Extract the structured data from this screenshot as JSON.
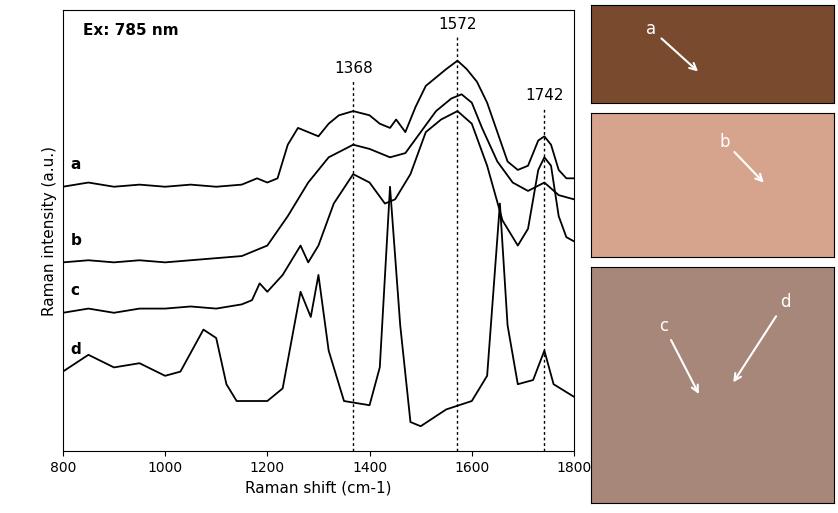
{
  "chart_data": {
    "type": "line",
    "annotations": [
      "Ex: 785 nm"
    ],
    "x_label": "Raman shift (cm-1)",
    "y_label": "Raman intensity (a.u.)",
    "xlim": [
      800,
      1800
    ],
    "xticks": [
      800,
      1000,
      1200,
      1400,
      1600,
      1800
    ],
    "ylim": [
      0,
      10.5
    ],
    "tick_labels": "x",
    "grid": false,
    "reference_lines": [
      {
        "x": 1368,
        "label": "1368"
      },
      {
        "x": 1572,
        "label": "1572"
      },
      {
        "x": 1742,
        "label": "1742"
      }
    ],
    "series": [
      {
        "name": "a",
        "color": "#000000",
        "x": [
          800,
          850,
          900,
          950,
          1000,
          1050,
          1100,
          1150,
          1180,
          1200,
          1220,
          1240,
          1260,
          1280,
          1300,
          1320,
          1340,
          1368,
          1400,
          1420,
          1440,
          1452,
          1470,
          1490,
          1510,
          1530,
          1550,
          1572,
          1590,
          1610,
          1630,
          1650,
          1670,
          1690,
          1710,
          1730,
          1742,
          1755,
          1770,
          1785,
          1800
        ],
        "values": [
          6.3,
          6.4,
          6.3,
          6.35,
          6.3,
          6.35,
          6.3,
          6.35,
          6.5,
          6.4,
          6.5,
          7.3,
          7.7,
          7.6,
          7.5,
          7.8,
          8.0,
          8.1,
          8.0,
          7.8,
          7.7,
          7.9,
          7.6,
          8.2,
          8.7,
          8.9,
          9.1,
          9.3,
          9.1,
          8.8,
          8.3,
          7.6,
          6.9,
          6.7,
          6.8,
          7.4,
          7.5,
          7.3,
          6.7,
          6.5,
          6.5
        ]
      },
      {
        "name": "b",
        "color": "#000000",
        "x": [
          800,
          850,
          900,
          950,
          1000,
          1050,
          1100,
          1150,
          1200,
          1240,
          1280,
          1320,
          1368,
          1400,
          1440,
          1470,
          1500,
          1530,
          1560,
          1580,
          1600,
          1620,
          1650,
          1680,
          1710,
          1742,
          1770,
          1800
        ],
        "values": [
          4.5,
          4.55,
          4.5,
          4.55,
          4.5,
          4.55,
          4.6,
          4.65,
          4.9,
          5.6,
          6.4,
          7.0,
          7.3,
          7.2,
          7.0,
          7.1,
          7.6,
          8.1,
          8.4,
          8.5,
          8.3,
          7.7,
          6.9,
          6.4,
          6.2,
          6.4,
          6.1,
          6.0
        ]
      },
      {
        "name": "c",
        "color": "#000000",
        "x": [
          800,
          850,
          900,
          950,
          1000,
          1050,
          1100,
          1150,
          1170,
          1185,
          1200,
          1230,
          1265,
          1280,
          1300,
          1330,
          1368,
          1400,
          1430,
          1450,
          1480,
          1510,
          1540,
          1572,
          1600,
          1630,
          1660,
          1690,
          1710,
          1730,
          1742,
          1755,
          1770,
          1785,
          1800
        ],
        "values": [
          3.3,
          3.4,
          3.3,
          3.4,
          3.4,
          3.45,
          3.4,
          3.5,
          3.6,
          4.0,
          3.8,
          4.2,
          4.9,
          4.5,
          4.9,
          5.9,
          6.6,
          6.4,
          5.9,
          6.0,
          6.6,
          7.6,
          7.9,
          8.1,
          7.8,
          6.8,
          5.5,
          4.9,
          5.3,
          6.7,
          7.0,
          6.8,
          5.6,
          5.1,
          5.0
        ]
      },
      {
        "name": "d",
        "color": "#000000",
        "x": [
          800,
          850,
          900,
          950,
          1000,
          1030,
          1075,
          1100,
          1120,
          1140,
          1200,
          1230,
          1265,
          1285,
          1300,
          1320,
          1350,
          1400,
          1420,
          1440,
          1460,
          1480,
          1500,
          1550,
          1600,
          1630,
          1655,
          1670,
          1690,
          1720,
          1742,
          1760,
          1800
        ],
        "values": [
          1.9,
          2.3,
          2.0,
          2.1,
          1.8,
          1.9,
          2.9,
          2.7,
          1.6,
          1.2,
          1.2,
          1.5,
          3.8,
          3.2,
          4.2,
          2.4,
          1.2,
          1.1,
          2.0,
          6.3,
          3.0,
          0.7,
          0.6,
          1.0,
          1.2,
          1.8,
          5.9,
          3.0,
          1.6,
          1.7,
          2.4,
          1.6,
          1.3
        ]
      }
    ],
    "photos": [
      {
        "color": "#7a4a2e",
        "labels": [
          "a"
        ]
      },
      {
        "color": "#d6a48c",
        "labels": [
          "b"
        ]
      },
      {
        "color": "#a7877a",
        "labels": [
          "c",
          "d"
        ]
      }
    ]
  }
}
